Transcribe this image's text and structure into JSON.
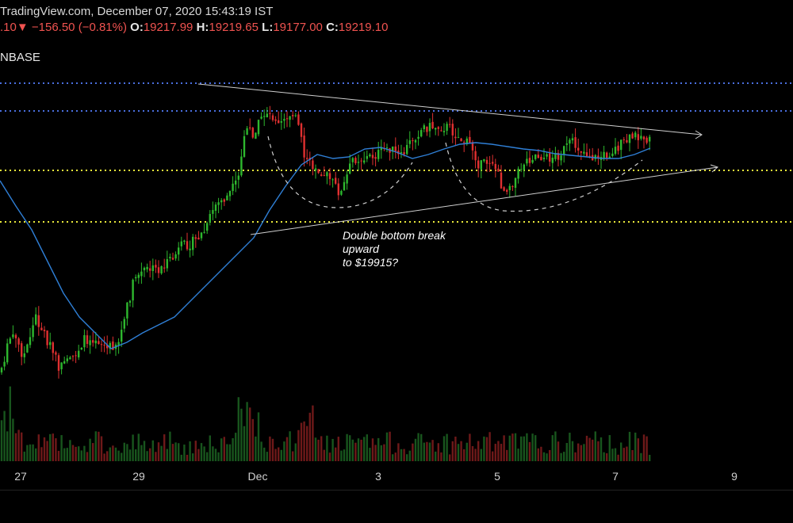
{
  "header": {
    "source_line": "TradingView.com, December 07, 2020 15:43:19 IST",
    "change_value_fragment": ".10",
    "change_arrow": "▼",
    "change": "−156.50 (−0.81%)",
    "open_label": "O:",
    "open": "19217.99",
    "high_label": "H:",
    "high": "19219.65",
    "low_label": "L:",
    "low": "19177.00",
    "close_label": "C:",
    "close": "19219.10"
  },
  "exchange_fragment": "NBASE",
  "annotation": [
    "Double bottom break",
    "upward",
    "to $19915?"
  ],
  "colors": {
    "up": "#2eb82e",
    "down": "#e03030",
    "ma": "#2f7fd6",
    "blue_level": "#4a6fe0",
    "yellow_level": "#e8e83a",
    "trendline": "#cfcfcf"
  },
  "chart_data": {
    "type": "candlestick",
    "x_ticks": [
      "27",
      "29",
      "Dec",
      "3",
      "5",
      "7",
      "9"
    ],
    "x_axis_dates": [
      "2020-11-27",
      "2020-11-29",
      "2020-12-01",
      "2020-12-03",
      "2020-12-05",
      "2020-12-07",
      "2020-12-09"
    ],
    "horizontal_levels": [
      {
        "style": "dotted",
        "color": "blue",
        "price_level": "top"
      },
      {
        "style": "dotted",
        "color": "blue",
        "price_level": "upper"
      },
      {
        "style": "dotted",
        "color": "yellow",
        "price_level": "middle"
      },
      {
        "style": "dotted",
        "color": "yellow",
        "price_level": "lower"
      }
    ],
    "overlays": [
      "moving-average",
      "symmetrical-triangle",
      "double-bottom-arcs"
    ],
    "last_close": 19219.1,
    "grid": false
  }
}
